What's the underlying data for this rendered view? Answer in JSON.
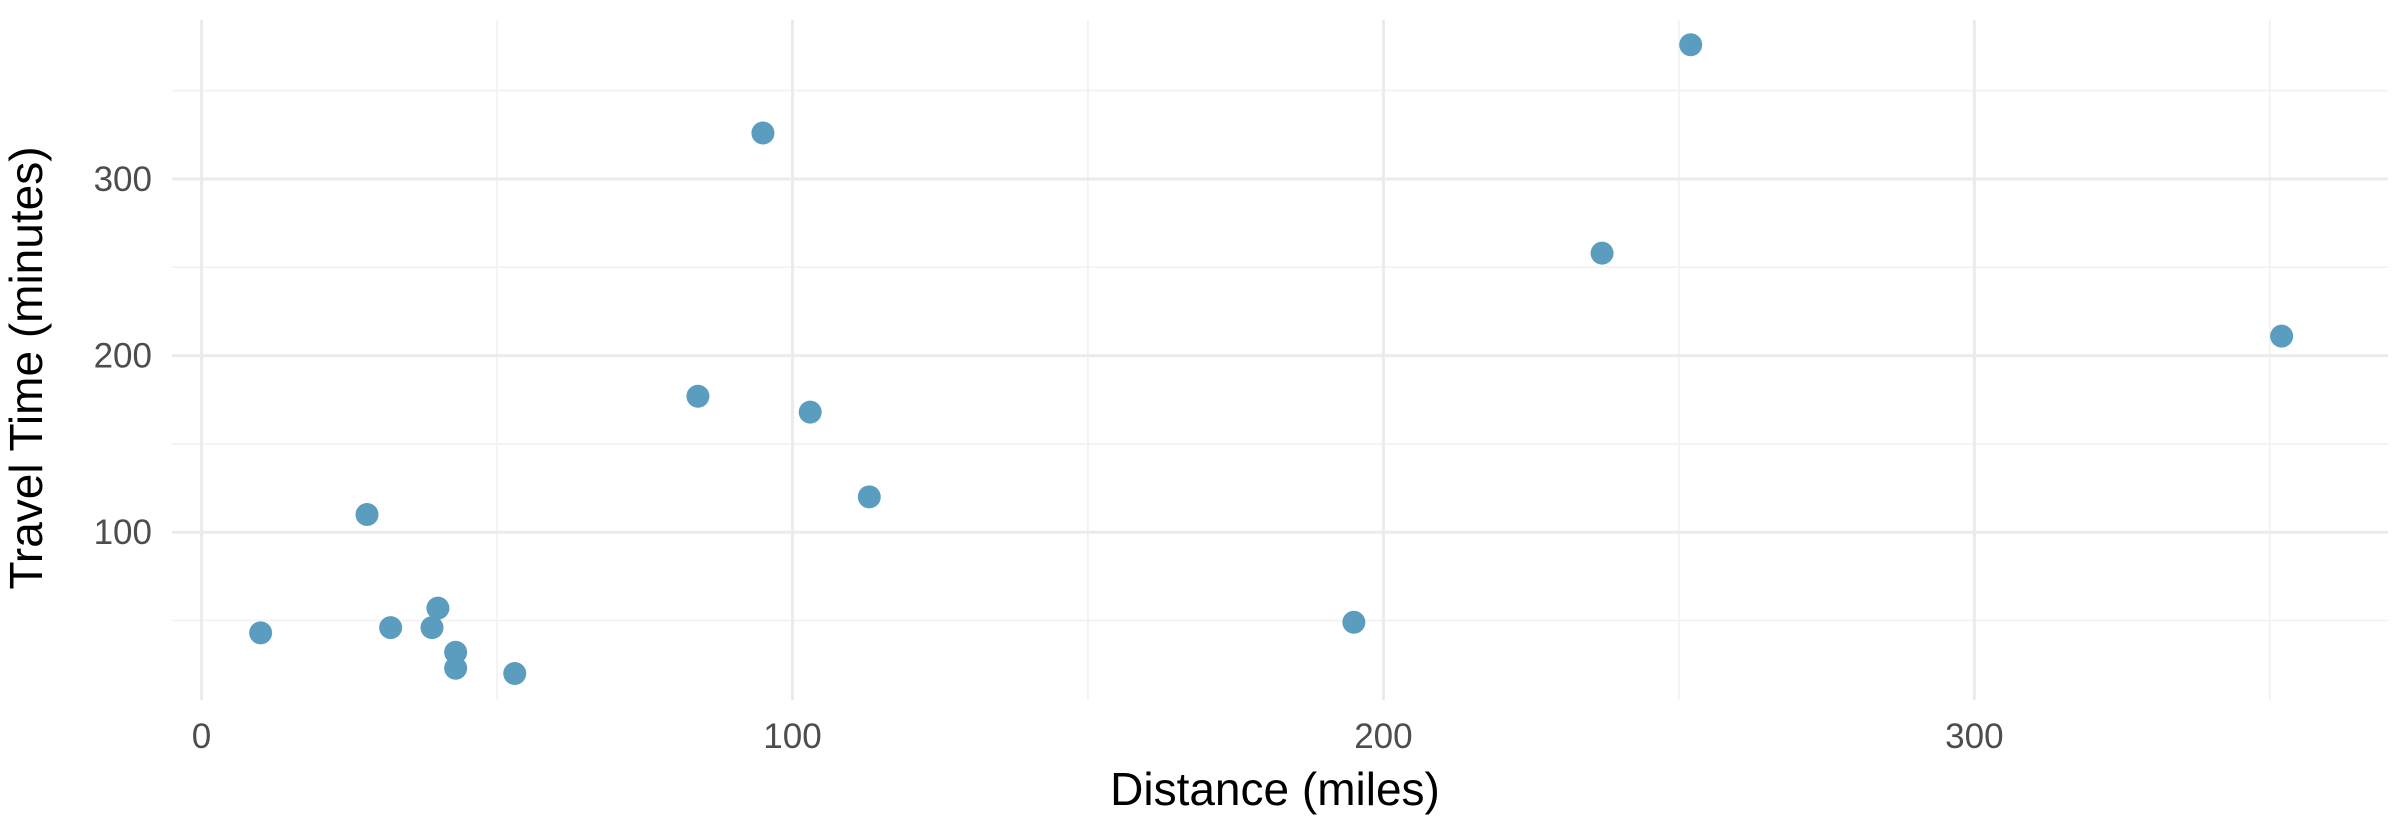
{
  "chart_data": {
    "type": "scatter",
    "title": "",
    "xlabel": "Distance (miles)",
    "ylabel": "Travel Time (minutes)",
    "xlim": [
      -5,
      370
    ],
    "ylim": [
      5,
      390
    ],
    "x_ticks": [
      0,
      100,
      200,
      300
    ],
    "y_ticks": [
      100,
      200,
      300
    ],
    "grid": true,
    "legend": "none",
    "point_color": "#5b9dbf",
    "points": [
      {
        "x": 10,
        "y": 43
      },
      {
        "x": 28,
        "y": 110
      },
      {
        "x": 32,
        "y": 46
      },
      {
        "x": 39,
        "y": 46
      },
      {
        "x": 40,
        "y": 57
      },
      {
        "x": 43,
        "y": 32
      },
      {
        "x": 43,
        "y": 23
      },
      {
        "x": 53,
        "y": 20
      },
      {
        "x": 84,
        "y": 177
      },
      {
        "x": 95,
        "y": 326
      },
      {
        "x": 103,
        "y": 168
      },
      {
        "x": 113,
        "y": 120
      },
      {
        "x": 195,
        "y": 49
      },
      {
        "x": 237,
        "y": 258
      },
      {
        "x": 252,
        "y": 376
      },
      {
        "x": 352,
        "y": 211
      }
    ]
  }
}
